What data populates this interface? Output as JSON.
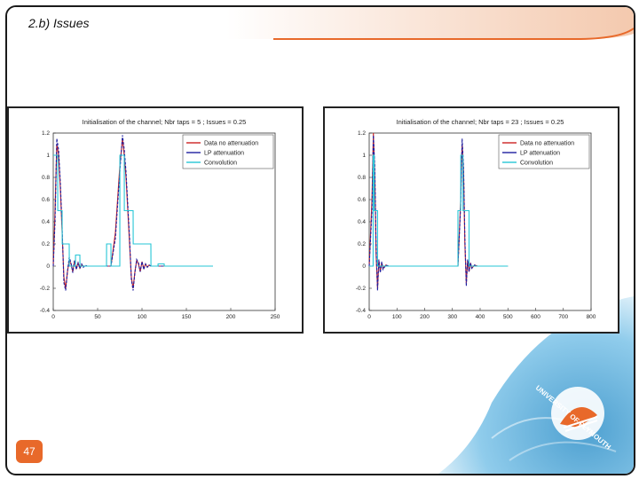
{
  "slide": {
    "title": "2.b) Issues",
    "page_number": "47",
    "logo_text": "UNIVERSITY OF PLYMOUTH"
  },
  "colors": {
    "series_1": "#cc2222",
    "series_2": "#1f1fa0",
    "series_3": "#26c6d6",
    "accent_orange": "#e8692a",
    "watermark_blue": "#4aa7d8"
  },
  "chart_data": [
    {
      "type": "line",
      "title": "Initialisation of the channel; Nbr taps = 5 ; Issues = 0.25",
      "xlim": [
        0,
        250
      ],
      "ylim": [
        -0.4,
        1.2
      ],
      "x_ticks": [
        0,
        50,
        100,
        150,
        200,
        250
      ],
      "y_ticks": [
        -0.4,
        -0.2,
        0,
        0.2,
        0.4,
        0.6,
        0.8,
        1,
        1.2
      ],
      "legend": "top-right",
      "series": [
        {
          "name": "Data no attenuation",
          "x": [
            0,
            2,
            4,
            6,
            8,
            10,
            12,
            14,
            16,
            18,
            20,
            22,
            24,
            26,
            28,
            30,
            32,
            34,
            36,
            38,
            40,
            45,
            50,
            55,
            60,
            65,
            70,
            75,
            78,
            80,
            82,
            84,
            86,
            88,
            90,
            92,
            94,
            96,
            98,
            100,
            102,
            104,
            106,
            108,
            110,
            112,
            114,
            116,
            118,
            120,
            125,
            130,
            135,
            140,
            150,
            160,
            170,
            180
          ],
          "values": [
            0,
            0.5,
            1.1,
            1.0,
            0.7,
            0.3,
            -0.1,
            -0.2,
            -0.05,
            0.05,
            0.02,
            -0.05,
            0.05,
            -0.02,
            0.03,
            -0.02,
            0.01,
            0,
            0,
            0,
            0,
            0,
            0,
            0,
            0,
            0,
            0.3,
            0.9,
            1.15,
            1.0,
            0.8,
            0.5,
            0.2,
            -0.1,
            -0.2,
            -0.05,
            0.05,
            0.02,
            -0.05,
            0.04,
            -0.02,
            0.02,
            -0.01,
            0.01,
            0,
            0,
            0,
            0,
            0,
            0,
            0,
            0,
            0,
            0,
            0,
            0,
            0,
            0
          ]
        },
        {
          "name": "LP attenuation",
          "x": [
            0,
            2,
            4,
            6,
            8,
            10,
            12,
            14,
            16,
            18,
            20,
            22,
            24,
            26,
            28,
            30,
            32,
            34,
            36,
            38,
            40,
            45,
            50,
            55,
            60,
            65,
            70,
            75,
            78,
            80,
            82,
            84,
            86,
            88,
            90,
            92,
            94,
            96,
            98,
            100,
            102,
            104,
            106,
            108,
            110,
            112,
            114,
            116,
            118,
            120,
            125,
            130,
            135,
            140,
            150,
            160,
            170,
            180
          ],
          "values": [
            0,
            0.4,
            1.15,
            1.05,
            0.75,
            0.35,
            -0.15,
            -0.22,
            -0.05,
            0.08,
            0.03,
            -0.06,
            0.05,
            -0.03,
            0.03,
            -0.02,
            0.02,
            -0.01,
            0.01,
            0,
            0,
            0,
            0,
            0,
            0,
            0,
            0.25,
            0.85,
            1.18,
            1.05,
            0.85,
            0.55,
            0.25,
            -0.12,
            -0.22,
            -0.06,
            0.06,
            0.03,
            -0.05,
            0.04,
            -0.03,
            0.02,
            -0.01,
            0.01,
            0,
            0,
            0,
            0,
            0,
            0,
            0,
            0,
            0,
            0,
            0,
            0,
            0,
            0
          ]
        },
        {
          "name": "Convolution",
          "x": [
            0,
            5,
            5.1,
            10,
            10.1,
            18,
            18.1,
            25,
            25.1,
            30,
            30.1,
            35,
            35.1,
            60,
            60.1,
            65,
            65.1,
            75,
            75.1,
            80,
            80.1,
            90,
            90.1,
            110,
            110.1,
            118,
            118.1,
            125,
            125.1,
            180
          ],
          "values": [
            1,
            1,
            0.5,
            0.5,
            0.2,
            0.2,
            0,
            0,
            0.1,
            0.1,
            0,
            0,
            0,
            0,
            0.2,
            0.2,
            0,
            0,
            1,
            1,
            0.5,
            0.5,
            0.2,
            0.2,
            0,
            0,
            0.02,
            0.02,
            0,
            0
          ]
        }
      ]
    },
    {
      "type": "line",
      "title": "Initialisation of the channel; Nbr taps = 23 ; Issues = 0.25",
      "xlim": [
        0,
        800
      ],
      "ylim": [
        -0.4,
        1.2
      ],
      "x_ticks": [
        0,
        100,
        200,
        300,
        400,
        500,
        600,
        700,
        800
      ],
      "y_ticks": [
        -0.4,
        -0.2,
        0,
        0.2,
        0.4,
        0.6,
        0.8,
        1,
        1.2
      ],
      "legend": "top-right",
      "series": [
        {
          "name": "Data no attenuation",
          "x": [
            0,
            10,
            15,
            20,
            25,
            30,
            35,
            40,
            45,
            50,
            60,
            70,
            80,
            90,
            100,
            150,
            200,
            250,
            300,
            320,
            330,
            335,
            340,
            345,
            350,
            355,
            360,
            365,
            370,
            380,
            390,
            400,
            420,
            450,
            500
          ],
          "values": [
            0,
            0.6,
            1.2,
            0.8,
            0.1,
            -0.2,
            0.05,
            -0.05,
            0.03,
            -0.02,
            0.01,
            0,
            0,
            0,
            0,
            0,
            0,
            0,
            0,
            0,
            0.6,
            1.1,
            0.85,
            0.2,
            -0.15,
            0.05,
            -0.05,
            0.03,
            -0.02,
            0.01,
            0,
            0,
            0,
            0,
            0
          ]
        },
        {
          "name": "LP attenuation",
          "x": [
            0,
            10,
            15,
            20,
            25,
            30,
            35,
            40,
            45,
            50,
            60,
            70,
            80,
            90,
            100,
            150,
            200,
            250,
            300,
            320,
            330,
            335,
            340,
            345,
            350,
            355,
            360,
            365,
            370,
            380,
            390,
            400,
            420,
            450,
            500
          ],
          "values": [
            0,
            0.5,
            1.18,
            0.9,
            0.15,
            -0.22,
            0.06,
            -0.06,
            0.04,
            -0.03,
            0.01,
            0,
            0,
            0,
            0,
            0,
            0,
            0,
            0,
            0,
            0.55,
            1.15,
            0.9,
            0.25,
            -0.18,
            0.06,
            -0.05,
            0.03,
            -0.02,
            0.01,
            0,
            0,
            0,
            0,
            0
          ]
        },
        {
          "name": "Convolution",
          "x": [
            0,
            14,
            14.1,
            18,
            18.1,
            30,
            30.1,
            320,
            320.1,
            330,
            330.1,
            338,
            338.1,
            360,
            360.1,
            500
          ],
          "values": [
            0,
            0,
            1,
            1,
            0.5,
            0.5,
            0,
            0,
            0.5,
            0.5,
            1,
            1,
            0.5,
            0.5,
            0,
            0
          ]
        }
      ]
    }
  ]
}
